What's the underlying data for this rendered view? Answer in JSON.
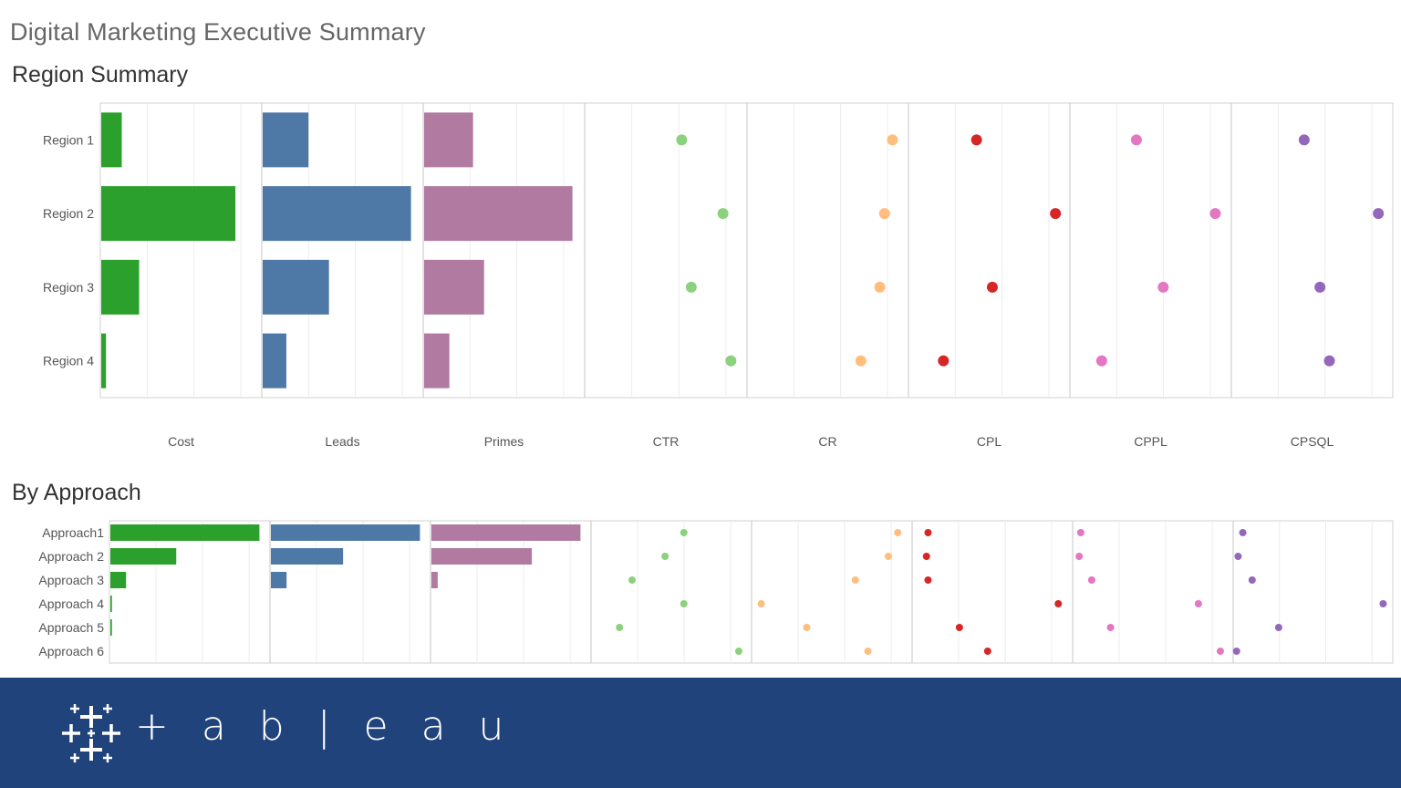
{
  "dashboard": {
    "title": "Digital Marketing Executive Summary"
  },
  "sections": {
    "region": "Region Summary",
    "approach": "By Approach"
  },
  "brand": {
    "wordmark": "+ a b | e a u",
    "logo_icon": "tableau-cross-icon",
    "color": "#21437b"
  },
  "colors": {
    "Cost": "#2ca02c",
    "Leads": "#4e79a7",
    "Primes": "#b07aa1",
    "CTR": "#8cd17d",
    "CR": "#ffbe7d",
    "CPL": "#d62728",
    "CPPL": "#e377c2",
    "CPSQL": "#9467bd"
  },
  "chart_data": [
    {
      "type": "bar",
      "title": "Region Summary",
      "categories": [
        "Region 1",
        "Region 2",
        "Region 3",
        "Region 4"
      ],
      "measures": [
        "Cost",
        "Leads",
        "Primes",
        "CTR",
        "CR",
        "CPL",
        "CPPL",
        "CPSQL"
      ],
      "mark_types": {
        "Cost": "bar",
        "Leads": "bar",
        "Primes": "bar",
        "CTR": "circle",
        "CR": "circle",
        "CPL": "circle",
        "CPPL": "circle",
        "CPSQL": "circle"
      },
      "series": [
        {
          "name": "Cost",
          "values": [
            0.13,
            0.85,
            0.24,
            0.03
          ]
        },
        {
          "name": "Leads",
          "values": [
            0.29,
            0.94,
            0.42,
            0.15
          ]
        },
        {
          "name": "Primes",
          "values": [
            0.31,
            0.94,
            0.38,
            0.16
          ]
        },
        {
          "name": "CTR",
          "values": [
            0.6,
            0.86,
            0.66,
            0.91
          ]
        },
        {
          "name": "CR",
          "values": [
            0.91,
            0.86,
            0.83,
            0.71
          ]
        },
        {
          "name": "CPL",
          "values": [
            0.42,
            0.92,
            0.52,
            0.21
          ]
        },
        {
          "name": "CPPL",
          "values": [
            0.41,
            0.91,
            0.58,
            0.19
          ]
        },
        {
          "name": "CPSQL",
          "values": [
            0.45,
            0.92,
            0.55,
            0.61
          ]
        }
      ],
      "xlim": [
        0,
        1
      ]
    },
    {
      "type": "bar",
      "title": "By Approach",
      "categories": [
        "Approach1",
        "Approach 2",
        "Approach 3",
        "Approach 4",
        "Approach 5",
        "Approach 6"
      ],
      "measures": [
        "Cost",
        "Leads",
        "Primes",
        "CTR",
        "CR",
        "CPL",
        "CPPL",
        "CPSQL"
      ],
      "mark_types": {
        "Cost": "bar",
        "Leads": "bar",
        "Primes": "bar",
        "CTR": "circle",
        "CR": "circle",
        "CPL": "circle",
        "CPPL": "circle",
        "CPSQL": "circle"
      },
      "series": [
        {
          "name": "Cost",
          "values": [
            0.95,
            0.42,
            0.1,
            0.01,
            0.01,
            0.0
          ]
        },
        {
          "name": "Leads",
          "values": [
            0.95,
            0.46,
            0.1,
            0.0,
            0.0,
            0.0
          ]
        },
        {
          "name": "Primes",
          "values": [
            0.95,
            0.64,
            0.04,
            0.0,
            0.0,
            0.0
          ]
        },
        {
          "name": "CTR",
          "values": [
            0.58,
            0.46,
            0.25,
            0.58,
            0.17,
            0.93
          ]
        },
        {
          "name": "CR",
          "values": [
            0.92,
            0.86,
            0.65,
            0.05,
            0.34,
            0.73
          ]
        },
        {
          "name": "CPL",
          "values": [
            0.09,
            0.08,
            0.09,
            0.92,
            0.29,
            0.47
          ]
        },
        {
          "name": "CPPL",
          "values": [
            0.04,
            0.03,
            0.11,
            0.79,
            0.23,
            0.93
          ]
        },
        {
          "name": "CPSQL",
          "values": [
            0.05,
            0.02,
            0.11,
            0.95,
            0.28,
            0.01
          ]
        }
      ],
      "xlim": [
        0,
        1
      ]
    }
  ]
}
